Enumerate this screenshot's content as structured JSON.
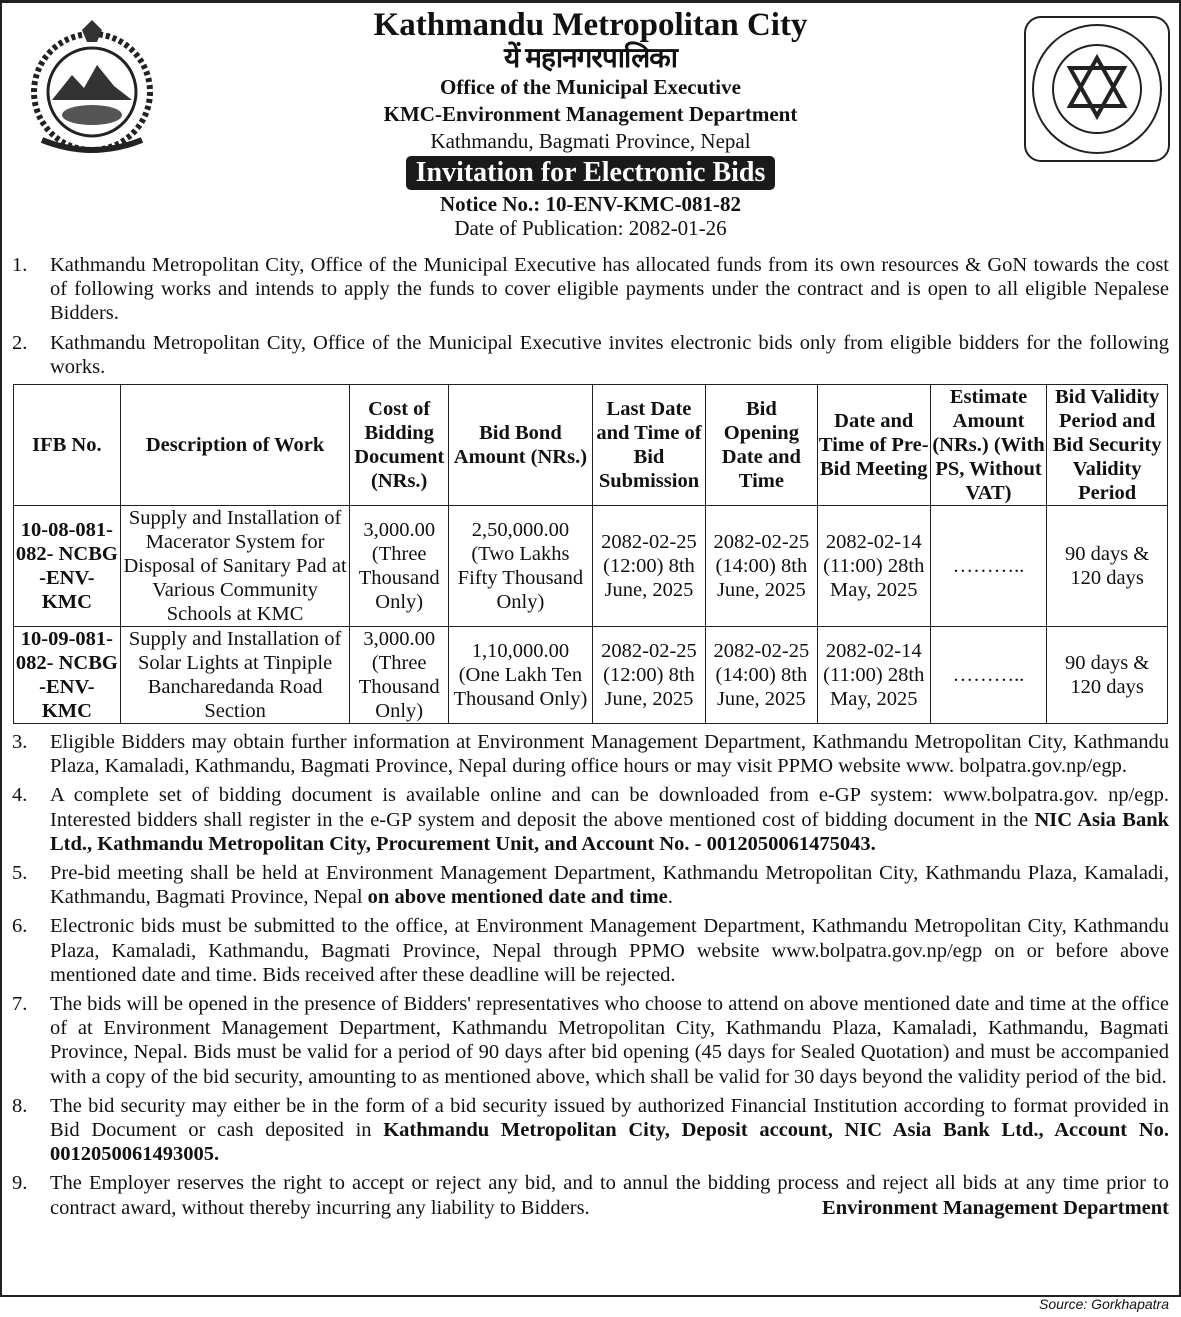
{
  "header": {
    "title": "Kathmandu Metropolitan City",
    "nepali_title": "यें महानगरपालिका",
    "office": "Office of the Municipal Executive",
    "department": "KMC-Environment Management Department",
    "address": "Kathmandu, Bagmati Province, Nepal",
    "banner": "Invitation for Electronic Bids",
    "notice_no": "Notice No.:  10-ENV-KMC-081-82",
    "publication_date": "Date of Publication: 2082-01-26",
    "left_logo": "nepal-emblem",
    "right_logo": "kathmandu-metropolitan-city-seal"
  },
  "paragraphs_top": [
    {
      "num": "1.",
      "parts": [
        {
          "text": "Kathmandu Metropolitan City, Office of the Municipal Executive has allocated funds from its own resources & GoN towards the cost of following works and intends to apply the funds to cover eligible payments under the contract and is open to all eligible Nepalese Bidders.",
          "bold": false
        }
      ]
    },
    {
      "num": "2.",
      "parts": [
        {
          "text": "Kathmandu Metropolitan City, Office of the Municipal Executive invites electronic bids only from eligible bidders for the following works.",
          "bold": false
        }
      ]
    }
  ],
  "table": {
    "headers": [
      "IFB No.",
      "Description of Work",
      "Cost of Bidding Document (NRs.)",
      "Bid Bond Amount (NRs.)",
      "Last Date and Time of Bid Submission",
      "Bid Opening Date and Time",
      "Date and Time of Pre-Bid Meeting",
      "Estimate Amount (NRs.) (With PS, Without VAT)",
      "Bid Validity Period and Bid Security Validity Period"
    ],
    "rows": [
      [
        "10-08-081-082- NCBG -ENV-KMC",
        "Supply and Installation of Macerator System for Disposal of Sanitary Pad at Various Community Schools at KMC",
        "3,000.00 (Three Thousand Only)",
        "2,50,000.00 (Two Lakhs Fifty Thousand Only)",
        "2082-02-25 (12:00) 8th June, 2025",
        "2082-02-25 (14:00) 8th June, 2025",
        "2082-02-14 (11:00) 28th May, 2025",
        "………..",
        "90 days & 120 days"
      ],
      [
        "10-09-081-082- NCBG -ENV-KMC",
        "Supply and Installation of Solar Lights at Tinpiple Bancharedanda Road Section",
        "3,000.00 (Three Thousand Only)",
        "1,10,000.00 (One Lakh Ten Thousand Only)",
        "2082-02-25 (12:00) 8th June, 2025",
        "2082-02-25 (14:00) 8th June, 2025",
        "2082-02-14 (11:00) 28th May, 2025",
        "………..",
        "90 days & 120 days"
      ]
    ]
  },
  "paragraphs_bottom": [
    {
      "num": "3.",
      "parts": [
        {
          "text": "Eligible Bidders may obtain further information at Environment Management Department, Kathmandu Metropolitan City, Kathmandu Plaza, Kamaladi, Kathmandu, Bagmati Province, Nepal during office hours or may visit PPMO website www. bolpatra.gov.np/egp.",
          "bold": false
        }
      ]
    },
    {
      "num": "4.",
      "parts": [
        {
          "text": "A complete set of bidding document is available online and can be downloaded from e-GP system: www.bolpatra.gov. np/egp. Interested bidders shall register in the e-GP system and deposit the above mentioned cost of bidding document in the ",
          "bold": false
        },
        {
          "text": "NIC Asia Bank Ltd., Kathmandu Metropolitan City, Procurement Unit, and Account No. - 0012050061475043.",
          "bold": true
        }
      ]
    },
    {
      "num": "5.",
      "parts": [
        {
          "text": "Pre-bid meeting shall be held at Environment Management Department, Kathmandu Metropolitan City, Kathmandu Plaza, Kamaladi, Kathmandu, Bagmati Province, Nepal ",
          "bold": false
        },
        {
          "text": "on above mentioned date and time",
          "bold": true
        },
        {
          "text": ".",
          "bold": false
        }
      ]
    },
    {
      "num": "6.",
      "parts": [
        {
          "text": "Electronic bids must be submitted to the office, at Environment Management Department, Kathmandu Metropolitan City, Kathmandu Plaza, Kamaladi, Kathmandu, Bagmati Province, Nepal through PPMO website www.bolpatra.gov.np/egp on or before above mentioned date and time. Bids received after these deadline will be rejected.",
          "bold": false
        }
      ]
    },
    {
      "num": "7.",
      "parts": [
        {
          "text": "The bids will be opened in the presence of Bidders' representatives who choose to attend on above mentioned date and time at the office of at Environment Management Department, Kathmandu Metropolitan City, Kathmandu Plaza, Kamaladi, Kathmandu, Bagmati Province, Nepal. Bids must be valid for a period of 90 days after bid opening (45 days for Sealed Quotation) and  must be accompanied with a copy of the bid security, amounting to as mentioned above, which shall be valid for 30 days beyond the validity period of the bid.",
          "bold": false
        }
      ]
    },
    {
      "num": "8.",
      "parts": [
        {
          "text": "The bid security may either be in the form of a bid security issued by authorized Financial Institution according to format provided in Bid Document or cash deposited in ",
          "bold": false
        },
        {
          "text": "Kathmandu Metropolitan City, Deposit account, NIC Asia Bank Ltd., Account No. 0012050061493005.",
          "bold": true
        }
      ]
    },
    {
      "num": "9.",
      "parts": [
        {
          "text": "The Employer reserves the right to accept or reject any bid, and to annul the bidding process and reject all bids at any time prior to contract award, without thereby incurring any liability to Bidders.",
          "bold": false
        }
      ]
    }
  ],
  "signature": "Environment Management Department",
  "source": "Source: Gorkhapatra"
}
